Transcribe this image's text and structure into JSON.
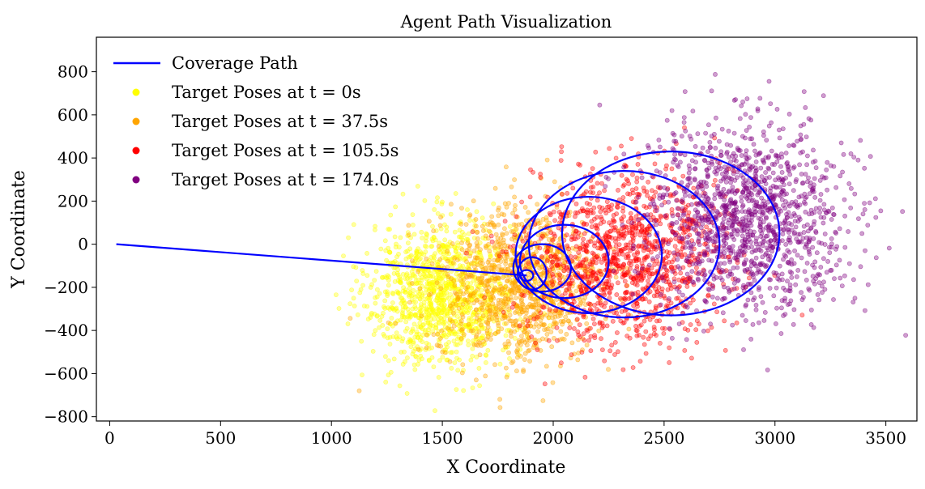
{
  "chart_data": {
    "type": "scatter",
    "title": "Agent Path Visualization",
    "xlabel": "X Coordinate",
    "ylabel": "Y Coordinate",
    "xlim": [
      -60,
      3640
    ],
    "ylim": [
      -820,
      960
    ],
    "xticks": [
      0,
      500,
      1000,
      1500,
      2000,
      2500,
      3000,
      3500
    ],
    "yticks": [
      -800,
      -600,
      -400,
      -200,
      0,
      200,
      400,
      600,
      800
    ],
    "grid": false,
    "legend_position": "top-left",
    "series": [
      {
        "name": "Target Poses at t = 0s",
        "kind": "scatter",
        "color": "#ffff00",
        "cluster": {
          "center": [
            1500,
            -230
          ],
          "spread": [
            165,
            165
          ],
          "count": 1100
        }
      },
      {
        "name": "Target Poses at t = 37.5s",
        "kind": "scatter",
        "color": "#ffa500",
        "cluster": {
          "center": [
            1850,
            -190
          ],
          "spread": [
            185,
            175
          ],
          "count": 1100
        }
      },
      {
        "name": "Target Poses at t = 105.5s",
        "kind": "scatter",
        "color": "#ff0000",
        "cluster": {
          "center": [
            2320,
            -60
          ],
          "spread": [
            215,
            200
          ],
          "count": 1200
        }
      },
      {
        "name": "Target Poses at t = 174.0s",
        "kind": "scatter",
        "color": "#800080",
        "cluster": {
          "center": [
            2880,
            130
          ],
          "spread": [
            225,
            210
          ],
          "count": 1300
        }
      }
    ],
    "path": {
      "name": "Coverage Path",
      "kind": "line",
      "color": "#0000ff",
      "start": [
        30,
        0
      ],
      "loop_entry": [
        1880,
        -145
      ],
      "loops": [
        {
          "center": [
            1880,
            -145
          ],
          "rx": 30,
          "ry": 25
        },
        {
          "center": [
            1905,
            -135
          ],
          "rx": 65,
          "ry": 75
        },
        {
          "center": [
            1950,
            -110
          ],
          "rx": 130,
          "ry": 110
        },
        {
          "center": [
            2050,
            -80
          ],
          "rx": 200,
          "ry": 170
        },
        {
          "center": [
            2160,
            -50
          ],
          "rx": 330,
          "ry": 270
        },
        {
          "center": [
            2320,
            0
          ],
          "rx": 430,
          "ry": 340
        },
        {
          "center": [
            2530,
            50
          ],
          "rx": 490,
          "ry": 380
        }
      ]
    }
  }
}
